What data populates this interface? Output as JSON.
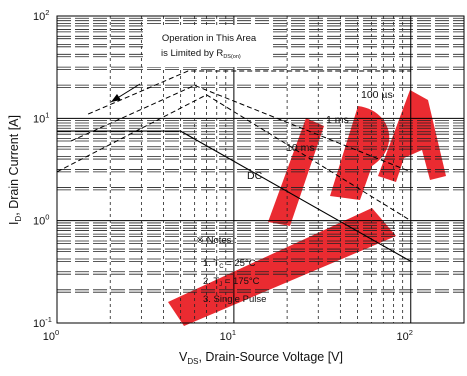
{
  "chart_data": {
    "type": "line",
    "title": "",
    "xlabel": {
      "main": "V",
      "sub": "DS",
      "rest": ", Drain-Source Voltage [V]"
    },
    "ylabel": {
      "main": "I",
      "sub": "D",
      "rest": ", Drain Current [A]"
    },
    "xscale": "log",
    "yscale": "log",
    "xlim": [
      1,
      200
    ],
    "ylim": [
      0.1,
      100
    ],
    "grid": true,
    "x_ticks": [
      {
        "value": 1,
        "base": "10",
        "exp": "0"
      },
      {
        "value": 10,
        "base": "10",
        "exp": "1"
      },
      {
        "value": 100,
        "base": "10",
        "exp": "2"
      }
    ],
    "y_ticks": [
      {
        "value": 0.1,
        "base": "10",
        "exp": "-1"
      },
      {
        "value": 1,
        "base": "10",
        "exp": "0"
      },
      {
        "value": 10,
        "base": "10",
        "exp": "1"
      },
      {
        "value": 100,
        "base": "10",
        "exp": "2"
      }
    ],
    "series": [
      {
        "name": "100 µs",
        "style": "dashed",
        "points": [
          [
            1.5,
            11
          ],
          [
            5.5,
            29
          ],
          [
            100,
            29
          ]
        ]
      },
      {
        "name": "1 ms",
        "style": "dashed",
        "points": [
          [
            1.2,
            6
          ],
          [
            6,
            21
          ],
          [
            100,
            3
          ]
        ]
      },
      {
        "name": "10 ms",
        "style": "dashed",
        "points": [
          [
            1,
            3
          ],
          [
            7,
            17
          ],
          [
            100,
            1
          ]
        ]
      },
      {
        "name": "DC",
        "style": "solid",
        "points": [
          [
            1,
            7.5
          ],
          [
            5,
            7.5
          ],
          [
            100,
            0.4
          ]
        ]
      }
    ],
    "annotations": [
      {
        "id": "rds",
        "line1": "Operation in This Area",
        "line2": "is Limited by R",
        "sub": "DS(on)"
      },
      {
        "id": "lbl100us",
        "text": "100 µs"
      },
      {
        "id": "lbl1ms",
        "text": "1 ms"
      },
      {
        "id": "lbl10ms",
        "text": "10 ms"
      },
      {
        "id": "lblDC",
        "text": "DC"
      }
    ],
    "notes": {
      "title": "※ Notes :",
      "items": [
        {
          "pre": "1. T",
          "sub": "C",
          "post": " = 25°C"
        },
        {
          "pre": "2. T",
          "sub": "J",
          "post": " = 175°C"
        },
        {
          "pre": "3. Single Pulse",
          "sub": "",
          "post": ""
        }
      ]
    },
    "colors": {
      "watermark": "#e8141b"
    }
  }
}
